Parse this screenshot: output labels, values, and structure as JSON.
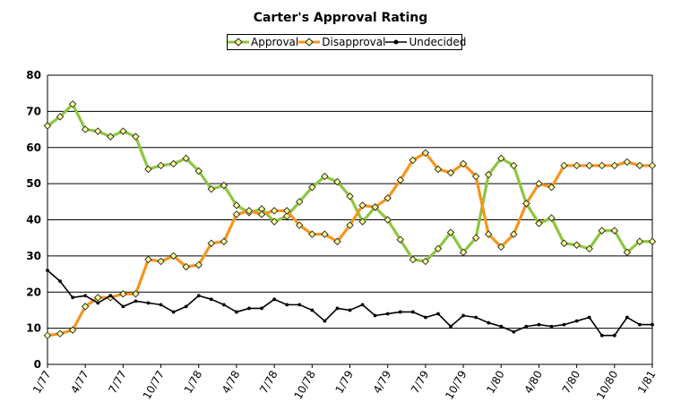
{
  "chart_data": {
    "type": "line",
    "title": "Carter's Approval Rating",
    "xlabel": "",
    "ylabel": "",
    "ylim": [
      0,
      80
    ],
    "yticks": [
      0,
      10,
      20,
      30,
      40,
      50,
      60,
      70,
      80
    ],
    "grid": "horizontal",
    "legend_placement": "top-center",
    "x_tick_labels": [
      "1/77",
      "4/77",
      "7/77",
      "10/77",
      "1/78",
      "4/78",
      "7/78",
      "10/78",
      "1/79",
      "4/79",
      "7/79",
      "10/79",
      "1/80",
      "4/80",
      "7/80",
      "10/80",
      "1/81"
    ],
    "series": [
      {
        "name": "Approval",
        "color": "#8dc63f",
        "marker": "diamond",
        "values": [
          66,
          68.5,
          72,
          65,
          64.5,
          63,
          64.5,
          63,
          54,
          55,
          55.5,
          57,
          53.5,
          48.5,
          49.5,
          44,
          42,
          43,
          39.5,
          41,
          45,
          49,
          52,
          50.5,
          46.5,
          39.5,
          43.5,
          40,
          34.5,
          29,
          28.5,
          32,
          36.5,
          31,
          35,
          52.5,
          57,
          55,
          44.5,
          39,
          40.5,
          33.5,
          33,
          32,
          37,
          37,
          31,
          34,
          34
        ]
      },
      {
        "name": "Disapproval",
        "color": "#f7941d",
        "marker": "diamond",
        "values": [
          8,
          8.5,
          9.5,
          16,
          18.5,
          18.5,
          19.5,
          19.5,
          29,
          28.5,
          30,
          27,
          27.5,
          33.5,
          34,
          41.5,
          42.5,
          41.5,
          42.5,
          42.5,
          38.5,
          36,
          36,
          34,
          38.5,
          44,
          43.5,
          46,
          51,
          56.5,
          58.5,
          54,
          53,
          55.5,
          52,
          36,
          32.5,
          36,
          44.5,
          50,
          49,
          55,
          55,
          55,
          55,
          55,
          56,
          55,
          55
        ]
      },
      {
        "name": "Undecided",
        "color": "#000000",
        "marker": "dot",
        "values": [
          26,
          23,
          18.5,
          19,
          17,
          19,
          16,
          17.5,
          17,
          16.5,
          14.5,
          16,
          19,
          18,
          16.5,
          14.5,
          15.5,
          15.5,
          18,
          16.5,
          16.5,
          15,
          12,
          15.5,
          15,
          16.5,
          13.5,
          14,
          14.5,
          14.5,
          13,
          14,
          10.5,
          13.5,
          13,
          11.5,
          10.5,
          9,
          10.5,
          11,
          10.5,
          11,
          12,
          13,
          8,
          8,
          13,
          11,
          11
        ]
      }
    ]
  }
}
